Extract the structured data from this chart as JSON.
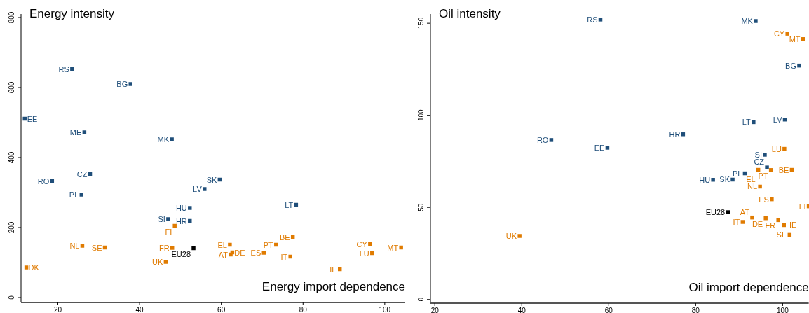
{
  "chart_data": [
    {
      "type": "scatter",
      "title": "Energy intensity",
      "xlabel": "Energy import dependence",
      "marker": "square",
      "grid": false,
      "xlim": [
        11,
        105
      ],
      "ylim": [
        -14,
        810
      ],
      "xticks": [
        20,
        40,
        60,
        80,
        100
      ],
      "yticks": [
        0,
        200,
        400,
        600,
        800
      ],
      "series": [
        {
          "color": "#1f4e79",
          "x": [
            23.5,
            37.8,
            11.9,
            26.5,
            47.9,
            27.9,
            18.6,
            25.8,
            55.9,
            52.3,
            47,
            52.3,
            59.6,
            78.3
          ],
          "values": [
            653,
            610,
            511,
            472,
            452,
            353,
            333,
            294,
            310,
            256,
            224,
            219,
            337,
            265
          ]
        },
        {
          "color": "#e07b00",
          "x": [
            48.6,
            26,
            31.5,
            48,
            46.4,
            12.3,
            77.5,
            62.1,
            73.4,
            62.7,
            62.3,
            70.4,
            76.9,
            96.4,
            96.9,
            104,
            89
          ],
          "values": [
            205,
            148,
            143,
            142,
            102,
            86,
            173,
            151,
            151,
            129,
            123,
            128,
            117,
            153,
            127,
            143,
            81
          ]
        },
        {
          "color": "#000000",
          "x": [
            53.2
          ],
          "values": [
            141
          ]
        }
      ],
      "annotations": [
        {
          "text": "RS",
          "x": 23.5,
          "y": 653
        },
        {
          "text": "BG",
          "x": 37.8,
          "y": 610
        },
        {
          "text": "EE",
          "x": 11.9,
          "y": 511
        },
        {
          "text": "ME",
          "x": 26.5,
          "y": 472
        },
        {
          "text": "MK",
          "x": 47.9,
          "y": 452
        },
        {
          "text": "CZ",
          "x": 27.9,
          "y": 353
        },
        {
          "text": "RO",
          "x": 18.6,
          "y": 333
        },
        {
          "text": "PL",
          "x": 25.8,
          "y": 294
        },
        {
          "text": "LV",
          "x": 55.9,
          "y": 310
        },
        {
          "text": "HU",
          "x": 52.3,
          "y": 256
        },
        {
          "text": "SI",
          "x": 47,
          "y": 224
        },
        {
          "text": "HR",
          "x": 52.3,
          "y": 219
        },
        {
          "text": "SK",
          "x": 59.6,
          "y": 337
        },
        {
          "text": "LT",
          "x": 78.3,
          "y": 265
        },
        {
          "text": "FI",
          "x": 48.6,
          "y": 205
        },
        {
          "text": "NL",
          "x": 26,
          "y": 148
        },
        {
          "text": "SE",
          "x": 31.5,
          "y": 143
        },
        {
          "text": "FR",
          "x": 48,
          "y": 142
        },
        {
          "text": "UK",
          "x": 46.4,
          "y": 102
        },
        {
          "text": "DK",
          "x": 12.3,
          "y": 86
        },
        {
          "text": "BE",
          "x": 77.5,
          "y": 173
        },
        {
          "text": "EL",
          "x": 62.1,
          "y": 151
        },
        {
          "text": "PT",
          "x": 73.4,
          "y": 151
        },
        {
          "text": "DE",
          "x": 62.7,
          "y": 129
        },
        {
          "text": "AT",
          "x": 62.3,
          "y": 123
        },
        {
          "text": "ES",
          "x": 70.4,
          "y": 128
        },
        {
          "text": "IT",
          "x": 76.9,
          "y": 117
        },
        {
          "text": "CY",
          "x": 96.4,
          "y": 153
        },
        {
          "text": "LU",
          "x": 96.9,
          "y": 127
        },
        {
          "text": "MT",
          "x": 104,
          "y": 143
        },
        {
          "text": "IE",
          "x": 89,
          "y": 81
        },
        {
          "text": "EU28",
          "x": 53.2,
          "y": 141
        }
      ]
    },
    {
      "type": "scatter",
      "title": "Oil intensity",
      "xlabel": "Oil import dependence",
      "marker": "square",
      "grid": false,
      "xlim": [
        19,
        106
      ],
      "ylim": [
        -2,
        155
      ],
      "xticks": [
        20,
        40,
        60,
        80,
        100
      ],
      "yticks": [
        0,
        50,
        100,
        150
      ],
      "series": [
        {
          "color": "#1f4e79",
          "x": [
            58.1,
            46.8,
            59.7,
            93.8,
            103.8,
            93.3,
            100.5,
            77.1,
            95.9,
            96.4,
            91.3,
            84,
            88.5
          ],
          "values": [
            152,
            86.6,
            82.4,
            151.2,
            127,
            96.3,
            97.7,
            89.7,
            78.6,
            71.7,
            68.5,
            65,
            65.1
          ]
        },
        {
          "color": "#e07b00",
          "x": [
            39.5,
            101.1,
            104.7,
            100.4,
            94.4,
            97.3,
            102.1,
            94.8,
            97.5,
            106,
            93,
            96.1,
            99,
            90.8,
            100.3,
            101.6
          ],
          "values": [
            34.5,
            144.3,
            141.4,
            81.8,
            70.4,
            70.3,
            70.4,
            61.3,
            54.4,
            50.6,
            44.5,
            44.1,
            43.1,
            42.1,
            40.4,
            35.1
          ]
        },
        {
          "color": "#000000",
          "x": [
            87.4
          ],
          "values": [
            47.4
          ]
        }
      ],
      "annotations": [
        {
          "text": "RS",
          "x": 58.1,
          "y": 152
        },
        {
          "text": "RO",
          "x": 46.8,
          "y": 86.6
        },
        {
          "text": "EE",
          "x": 59.7,
          "y": 82.4
        },
        {
          "text": "MK",
          "x": 93.8,
          "y": 151.2
        },
        {
          "text": "BG",
          "x": 103.8,
          "y": 127
        },
        {
          "text": "LT",
          "x": 93.3,
          "y": 96.3
        },
        {
          "text": "LV",
          "x": 100.5,
          "y": 97.7
        },
        {
          "text": "HR",
          "x": 77.1,
          "y": 89.7
        },
        {
          "text": "SI",
          "x": 95.9,
          "y": 78.6
        },
        {
          "text": "CZ",
          "x": 96.4,
          "y": 71.7
        },
        {
          "text": "PL",
          "x": 91.3,
          "y": 68.5
        },
        {
          "text": "HU",
          "x": 84,
          "y": 65
        },
        {
          "text": "SK",
          "x": 88.5,
          "y": 65.1
        },
        {
          "text": "UK",
          "x": 39.5,
          "y": 34.5
        },
        {
          "text": "CY",
          "x": 101.1,
          "y": 144.3
        },
        {
          "text": "MT",
          "x": 104.7,
          "y": 141.4
        },
        {
          "text": "LU",
          "x": 100.4,
          "y": 81.8
        },
        {
          "text": "EL",
          "x": 94.4,
          "y": 70.4
        },
        {
          "text": "PT",
          "x": 97.3,
          "y": 70.3
        },
        {
          "text": "BE",
          "x": 102.1,
          "y": 70.4
        },
        {
          "text": "NL",
          "x": 94.8,
          "y": 61.3
        },
        {
          "text": "ES",
          "x": 97.5,
          "y": 54.4
        },
        {
          "text": "FI",
          "x": 106,
          "y": 50.6
        },
        {
          "text": "AT",
          "x": 93,
          "y": 44.5
        },
        {
          "text": "DE",
          "x": 96.1,
          "y": 44.1
        },
        {
          "text": "FR",
          "x": 99,
          "y": 43.1
        },
        {
          "text": "IT",
          "x": 90.8,
          "y": 42.1
        },
        {
          "text": "IE",
          "x": 100.3,
          "y": 40.4
        },
        {
          "text": "SE",
          "x": 101.6,
          "y": 35.1
        },
        {
          "text": "EU28",
          "x": 87.4,
          "y": 47.4
        }
      ]
    }
  ]
}
